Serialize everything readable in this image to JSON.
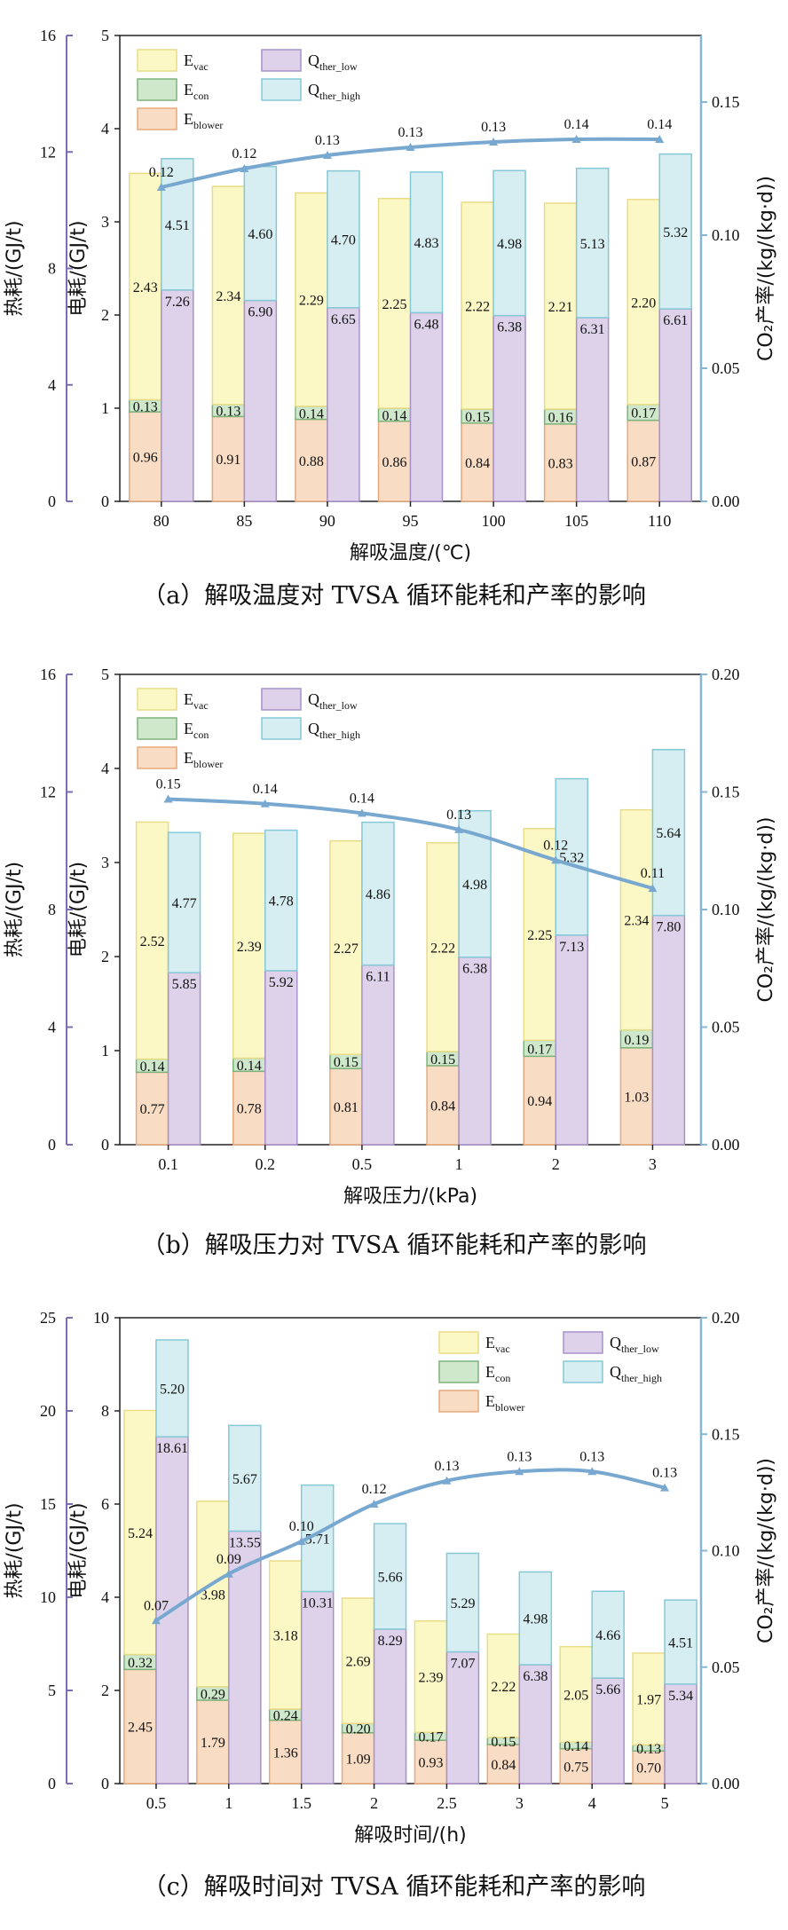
{
  "legend_names": {
    "e_vac": [
      "E",
      "vac"
    ],
    "e_con": [
      "E",
      "con"
    ],
    "e_blower": [
      "E",
      "blower"
    ],
    "q_low": [
      "Q",
      "ther_low"
    ],
    "q_high": [
      "Q",
      "ther_high"
    ]
  },
  "colors": {
    "e_vac": "#fbf8c6",
    "e_vac_stroke": "#e9dc87",
    "e_con": "#cfe8cc",
    "e_con_stroke": "#7db37a",
    "e_blower": "#f9dcc4",
    "e_blower_stroke": "#e6a97d",
    "q_low": "#ddd2ea",
    "q_low_stroke": "#a891c8",
    "q_high": "#d6eef2",
    "q_high_stroke": "#85c8d6",
    "line": "#78a8d0",
    "axis_heat": "#7f6bb8",
    "axis_rate": "#86b6d4"
  },
  "left_heat_title": "热耗/(GJ/t)",
  "left_elec_title": "电耗/(GJ/t)",
  "right_title": "CO₂产率/(kg/(kg·d))",
  "chart_data": [
    {
      "type": "bar",
      "panel": "a",
      "caption": "（a）解吸温度对 TVSA 循环能耗和产率的影响",
      "xlabel": "解吸温度/(℃)",
      "categories": [
        "80",
        "85",
        "90",
        "95",
        "100",
        "105",
        "110"
      ],
      "elec_ylim": [
        0,
        5
      ],
      "elec_ticks": [
        "0",
        "1",
        "2",
        "3",
        "4",
        "5"
      ],
      "heat_ticks": [
        "0",
        "4",
        "8",
        "12",
        "16"
      ],
      "rate_ylim": [
        0,
        0.175
      ],
      "rate_ticks": [
        "0.00",
        "0.05",
        "0.10",
        "0.15"
      ],
      "legend_pos": "top-left",
      "series": [
        {
          "name": "E_blower",
          "values": [
            0.96,
            0.91,
            0.88,
            0.86,
            0.84,
            0.83,
            0.87
          ],
          "labels": [
            "0.96",
            "0.91",
            "0.88",
            "0.86",
            "0.84",
            "0.83",
            "0.87"
          ]
        },
        {
          "name": "E_con",
          "values": [
            0.13,
            0.13,
            0.14,
            0.14,
            0.15,
            0.16,
            0.17
          ],
          "labels": [
            "0.13",
            "0.13",
            "0.14",
            "0.14",
            "0.15",
            "0.16",
            "0.17"
          ]
        },
        {
          "name": "E_vac",
          "values": [
            2.43,
            2.34,
            2.29,
            2.25,
            2.22,
            2.21,
            2.2
          ],
          "labels": [
            "2.43",
            "2.34",
            "2.29",
            "2.25",
            "2.22",
            "2.21",
            "2.20"
          ]
        },
        {
          "name": "Q_ther_low",
          "values": [
            7.26,
            6.9,
            6.65,
            6.48,
            6.38,
            6.31,
            6.61
          ],
          "labels": [
            "7.26",
            "6.90",
            "6.65",
            "6.48",
            "6.38",
            "6.31",
            "6.61"
          ]
        },
        {
          "name": "Q_ther_high",
          "values": [
            4.51,
            4.6,
            4.7,
            4.83,
            4.98,
            5.13,
            5.32
          ],
          "labels": [
            "4.51",
            "4.60",
            "4.70",
            "4.83",
            "4.98",
            "5.13",
            "5.32"
          ]
        },
        {
          "name": "CO2_rate",
          "values": [
            0.118,
            0.125,
            0.13,
            0.133,
            0.135,
            0.136,
            0.136
          ],
          "labels": [
            "0.12",
            "0.12",
            "0.13",
            "0.13",
            "0.13",
            "0.14",
            "0.14"
          ]
        }
      ]
    },
    {
      "type": "bar",
      "panel": "b",
      "caption": "（b）解吸压力对 TVSA 循环能耗和产率的影响",
      "xlabel": "解吸压力/(kPa)",
      "categories": [
        "0.1",
        "0.2",
        "0.5",
        "1",
        "2",
        "3"
      ],
      "elec_ylim": [
        0,
        5
      ],
      "elec_ticks": [
        "0",
        "1",
        "2",
        "3",
        "4",
        "5"
      ],
      "heat_ticks": [
        "0",
        "4",
        "8",
        "12",
        "16"
      ],
      "rate_ylim": [
        0,
        0.2
      ],
      "rate_ticks": [
        "0.00",
        "0.05",
        "0.10",
        "0.15",
        "0.20"
      ],
      "legend_pos": "top-left",
      "series": [
        {
          "name": "E_blower",
          "values": [
            0.77,
            0.78,
            0.81,
            0.84,
            0.94,
            1.03
          ],
          "labels": [
            "0.77",
            "0.78",
            "0.81",
            "0.84",
            "0.94",
            "1.03"
          ]
        },
        {
          "name": "E_con",
          "values": [
            0.14,
            0.14,
            0.15,
            0.15,
            0.17,
            0.19
          ],
          "labels": [
            "0.14",
            "0.14",
            "0.15",
            "0.15",
            "0.17",
            "0.19"
          ]
        },
        {
          "name": "E_vac",
          "values": [
            2.52,
            2.39,
            2.27,
            2.22,
            2.25,
            2.34
          ],
          "labels": [
            "2.52",
            "2.39",
            "2.27",
            "2.22",
            "2.25",
            "2.34"
          ]
        },
        {
          "name": "Q_ther_low",
          "values": [
            5.85,
            5.92,
            6.11,
            6.38,
            7.13,
            7.8
          ],
          "labels": [
            "5.85",
            "5.92",
            "6.11",
            "6.38",
            "7.13",
            "7.80"
          ]
        },
        {
          "name": "Q_ther_high",
          "values": [
            4.77,
            4.78,
            4.86,
            4.98,
            5.32,
            5.64
          ],
          "labels": [
            "4.77",
            "4.78",
            "4.86",
            "4.98",
            "5.32",
            "5.64"
          ]
        },
        {
          "name": "CO2_rate",
          "values": [
            0.147,
            0.145,
            0.141,
            0.134,
            0.121,
            0.109
          ],
          "labels": [
            "0.15",
            "0.14",
            "0.14",
            "0.13",
            "0.12",
            "0.11"
          ]
        }
      ]
    },
    {
      "type": "bar",
      "panel": "c",
      "caption": "（c）解吸时间对 TVSA 循环能耗和产率的影响",
      "xlabel": "解吸时间/(h)",
      "categories": [
        "0.5",
        "1",
        "1.5",
        "2",
        "2.5",
        "3",
        "4",
        "5"
      ],
      "elec_ylim": [
        0,
        10
      ],
      "elec_ticks": [
        "0",
        "2",
        "4",
        "6",
        "8",
        "10"
      ],
      "heat_ticks": [
        "0",
        "5",
        "10",
        "15",
        "20",
        "25"
      ],
      "rate_ylim": [
        0,
        0.2
      ],
      "rate_ticks": [
        "0.00",
        "0.05",
        "0.10",
        "0.15",
        "0.20"
      ],
      "legend_pos": "top-right",
      "series": [
        {
          "name": "E_blower",
          "values": [
            2.45,
            1.79,
            1.36,
            1.09,
            0.93,
            0.84,
            0.75,
            0.7
          ],
          "labels": [
            "2.45",
            "1.79",
            "1.36",
            "1.09",
            "0.93",
            "0.84",
            "0.75",
            "0.70"
          ]
        },
        {
          "name": "E_con",
          "values": [
            0.32,
            0.29,
            0.24,
            0.2,
            0.17,
            0.15,
            0.14,
            0.13
          ],
          "labels": [
            "0.32",
            "0.29",
            "0.24",
            "0.20",
            "0.17",
            "0.15",
            "0.14",
            "0.13"
          ]
        },
        {
          "name": "E_vac",
          "values": [
            5.24,
            3.98,
            3.18,
            2.69,
            2.39,
            2.22,
            2.05,
            1.97
          ],
          "labels": [
            "5.24",
            "3.98",
            "3.18",
            "2.69",
            "2.39",
            "2.22",
            "2.05",
            "1.97"
          ]
        },
        {
          "name": "Q_ther_low",
          "values": [
            18.61,
            13.55,
            10.31,
            8.29,
            7.07,
            6.38,
            5.66,
            5.34
          ],
          "labels": [
            "18.61",
            "13.55",
            "10.31",
            "8.29",
            "7.07",
            "6.38",
            "5.66",
            "5.34"
          ]
        },
        {
          "name": "Q_ther_high",
          "values": [
            5.2,
            5.67,
            5.71,
            5.66,
            5.29,
            4.98,
            4.66,
            4.51
          ],
          "labels": [
            "5.20",
            "5.67",
            "5.71",
            "5.66",
            "5.29",
            "4.98",
            "4.66",
            "4.51"
          ]
        },
        {
          "name": "CO2_rate",
          "values": [
            0.07,
            0.09,
            0.104,
            0.12,
            0.13,
            0.134,
            0.134,
            0.127
          ],
          "labels": [
            "0.07",
            "0.09",
            "0.10",
            "0.12",
            "0.13",
            "0.13",
            "0.13",
            "0.13"
          ]
        }
      ]
    }
  ]
}
